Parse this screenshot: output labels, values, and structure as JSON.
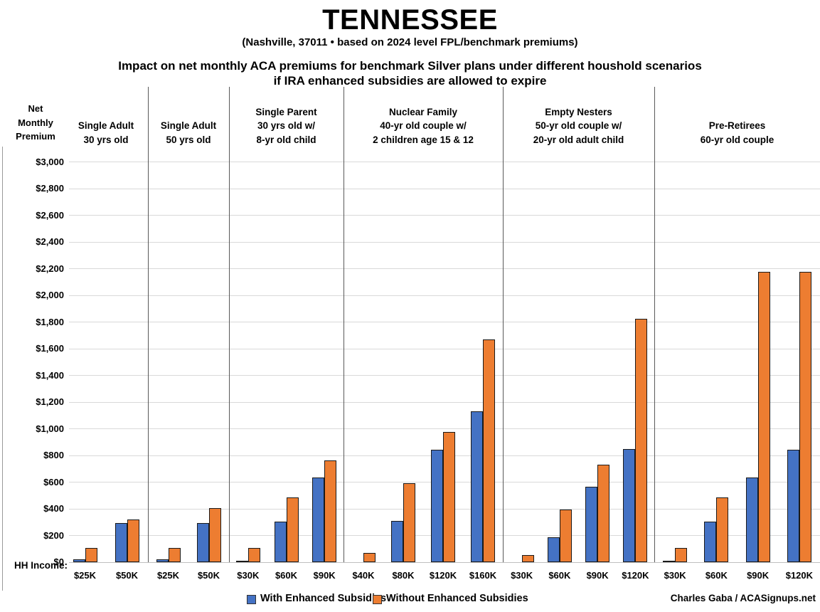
{
  "chart_data": {
    "type": "bar",
    "title": "TENNESSEE",
    "subtitle": "(Nashville, 37011 • based on 2024 level FPL/benchmark premiums)",
    "heading_line1": "Impact on net monthly ACA premiums for benchmark Silver plans under different houshold scenarios",
    "heading_line2": "if IRA enhanced subsidies are allowed to expire",
    "ylabel": "Net\nMonthly\nPremium",
    "xlabel_prefix": "HH Income:",
    "ylim": [
      0,
      3000
    ],
    "ytick_step": 200,
    "ytick_labels": [
      "$0",
      "$200",
      "$400",
      "$600",
      "$800",
      "$1,000",
      "$1,200",
      "$1,400",
      "$1,600",
      "$1,800",
      "$2,000",
      "$2,200",
      "$2,400",
      "$2,600",
      "$2,800",
      "$3,000"
    ],
    "grid": true,
    "legend_position": "bottom",
    "series": [
      {
        "name": "With Enhanced Subsidies",
        "color": "#4472C4"
      },
      {
        "name": "Without Enhanced Subsidies",
        "color": "#ED7D31"
      }
    ],
    "panels": [
      {
        "title_lines": [
          "Single Adult",
          "30 yrs old"
        ],
        "groups": [
          {
            "income": "$25K",
            "with_enhanced": 20,
            "without_enhanced": 105
          },
          {
            "income": "$50K",
            "with_enhanced": 295,
            "without_enhanced": 320
          }
        ]
      },
      {
        "title_lines": [
          "Single Adult",
          "50 yrs old"
        ],
        "groups": [
          {
            "income": "$25K",
            "with_enhanced": 20,
            "without_enhanced": 105
          },
          {
            "income": "$50K",
            "with_enhanced": 295,
            "without_enhanced": 405
          }
        ]
      },
      {
        "title_lines": [
          "Single Parent",
          "30 yrs old w/",
          "8-yr old child"
        ],
        "groups": [
          {
            "income": "$30K",
            "with_enhanced": 10,
            "without_enhanced": 105
          },
          {
            "income": "$60K",
            "with_enhanced": 305,
            "without_enhanced": 485
          },
          {
            "income": "$90K",
            "with_enhanced": 635,
            "without_enhanced": 760
          }
        ]
      },
      {
        "title_lines": [
          "Nuclear Family",
          "40-yr old couple w/",
          "2 children age 15 & 12"
        ],
        "groups": [
          {
            "income": "$40K",
            "with_enhanced": 0,
            "without_enhanced": 70
          },
          {
            "income": "$80K",
            "with_enhanced": 310,
            "without_enhanced": 590
          },
          {
            "income": "$120K",
            "with_enhanced": 845,
            "without_enhanced": 975
          },
          {
            "income": "$160K",
            "with_enhanced": 1130,
            "without_enhanced": 1670
          }
        ]
      },
      {
        "title_lines": [
          "Empty Nesters",
          "50-yr old couple w/",
          "20-yr old adult child"
        ],
        "groups": [
          {
            "income": "$30K",
            "with_enhanced": 0,
            "without_enhanced": 55
          },
          {
            "income": "$60K",
            "with_enhanced": 185,
            "without_enhanced": 395
          },
          {
            "income": "$90K",
            "with_enhanced": 565,
            "without_enhanced": 730
          },
          {
            "income": "$120K",
            "with_enhanced": 850,
            "without_enhanced": 1825
          }
        ]
      },
      {
        "title_lines": [
          "Pre-Retirees",
          "60-yr old couple"
        ],
        "groups": [
          {
            "income": "$30K",
            "with_enhanced": 10,
            "without_enhanced": 105
          },
          {
            "income": "$60K",
            "with_enhanced": 305,
            "without_enhanced": 485
          },
          {
            "income": "$90K",
            "with_enhanced": 635,
            "without_enhanced": 2175
          },
          {
            "income": "$120K",
            "with_enhanced": 845,
            "without_enhanced": 2175
          }
        ]
      }
    ],
    "footer": "Charles Gaba / ACASignups.net",
    "colors": {
      "with_enhanced": "#4472C4",
      "without_enhanced": "#ED7D31",
      "gridline": "#D9D9D9",
      "panel_divider": "#595959"
    }
  }
}
